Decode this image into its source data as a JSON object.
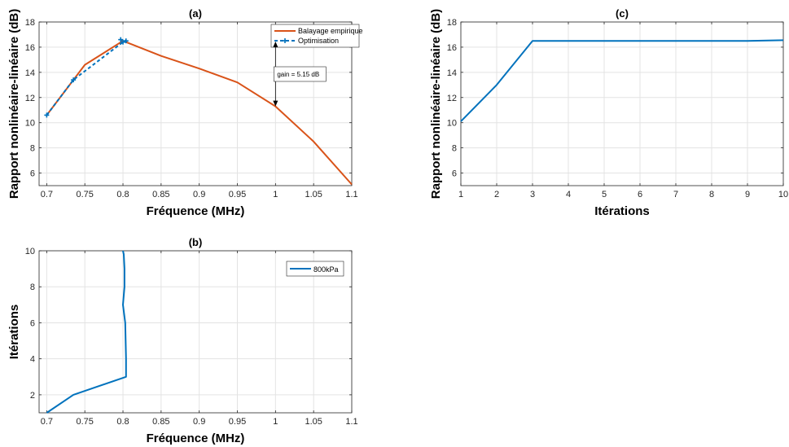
{
  "colors": {
    "orange": "#D95319",
    "blue": "#0072BD",
    "grid": "#e3e3e3",
    "axis": "#262626"
  },
  "chart_data": [
    {
      "id": "a",
      "type": "line",
      "title": "(a)",
      "xlabel": "Fréquence (MHz)",
      "ylabel": "Rapport nonlinéaire-linéaire (dB)",
      "xlim": [
        0.69,
        1.1
      ],
      "ylim": [
        5,
        18
      ],
      "xticks": [
        0.7,
        0.75,
        0.8,
        0.85,
        0.9,
        0.95,
        1,
        1.05,
        1.1
      ],
      "xtick_labels": [
        "0.7",
        "0.75",
        "0.8",
        "0.85",
        "0.9",
        "0.95",
        "1",
        "1.05",
        "1.1"
      ],
      "yticks": [
        6,
        8,
        10,
        12,
        14,
        16,
        18
      ],
      "ytick_labels": [
        "6",
        "8",
        "10",
        "12",
        "14",
        "16",
        "18"
      ],
      "grid": true,
      "legend_position": "top-right",
      "series": [
        {
          "name": "Balayage empirique",
          "style": "solid",
          "marker": "none",
          "x": [
            0.7,
            0.75,
            0.8,
            0.85,
            0.9,
            0.95,
            1,
            1.05,
            1.1
          ],
          "y": [
            10.6,
            14.6,
            16.5,
            15.3,
            14.3,
            13.2,
            11.3,
            8.5,
            5.1
          ]
        },
        {
          "name": "Optimisation",
          "style": "dashed",
          "marker": "plus",
          "x": [
            0.7,
            0.735,
            0.8,
            0.797,
            0.804
          ],
          "y": [
            10.6,
            13.4,
            16.4,
            16.6,
            16.5
          ]
        }
      ],
      "annotation": {
        "text": "gain = 5.15 dB",
        "x": 1.0,
        "y_top": 16.45,
        "y_bottom": 11.3
      }
    },
    {
      "id": "b",
      "type": "line",
      "title": "(b)",
      "xlabel": "Fréquence (MHz)",
      "ylabel": "Itérations",
      "xlim": [
        0.69,
        1.1
      ],
      "ylim": [
        1,
        10
      ],
      "xticks": [
        0.7,
        0.75,
        0.8,
        0.85,
        0.9,
        0.95,
        1,
        1.05,
        1.1
      ],
      "xtick_labels": [
        "0.7",
        "0.75",
        "0.8",
        "0.85",
        "0.9",
        "0.95",
        "1",
        "1.05",
        "1.1"
      ],
      "yticks": [
        2,
        4,
        6,
        8,
        10
      ],
      "ytick_labels": [
        "2",
        "4",
        "6",
        "8",
        "10"
      ],
      "grid": true,
      "legend_position": "top-right",
      "series": [
        {
          "name": "800kPa",
          "style": "solid",
          "marker": "none",
          "x": [
            0.7,
            0.735,
            0.804,
            0.804,
            0.803,
            0.8,
            0.802,
            0.802,
            0.801,
            0.8
          ],
          "y": [
            1,
            2,
            3,
            4,
            6,
            7,
            8,
            9,
            9.8,
            10
          ]
        }
      ]
    },
    {
      "id": "c",
      "type": "line",
      "title": "(c)",
      "xlabel": "Itérations",
      "ylabel": "Rapport nonlinéaire-linéaire (dB)",
      "xlim": [
        1,
        10
      ],
      "ylim": [
        5,
        18
      ],
      "xticks": [
        1,
        2,
        3,
        4,
        5,
        6,
        7,
        8,
        9,
        10
      ],
      "xtick_labels": [
        "1",
        "2",
        "3",
        "4",
        "5",
        "6",
        "7",
        "8",
        "9",
        "10"
      ],
      "yticks": [
        6,
        8,
        10,
        12,
        14,
        16,
        18
      ],
      "ytick_labels": [
        "6",
        "8",
        "10",
        "12",
        "14",
        "16",
        "18"
      ],
      "grid": true,
      "series": [
        {
          "style": "solid",
          "marker": "none",
          "x": [
            1,
            2,
            3,
            4,
            5,
            6,
            7,
            8,
            9,
            10
          ],
          "y": [
            10.1,
            13.0,
            16.5,
            16.5,
            16.5,
            16.5,
            16.5,
            16.5,
            16.5,
            16.55
          ]
        }
      ]
    }
  ]
}
